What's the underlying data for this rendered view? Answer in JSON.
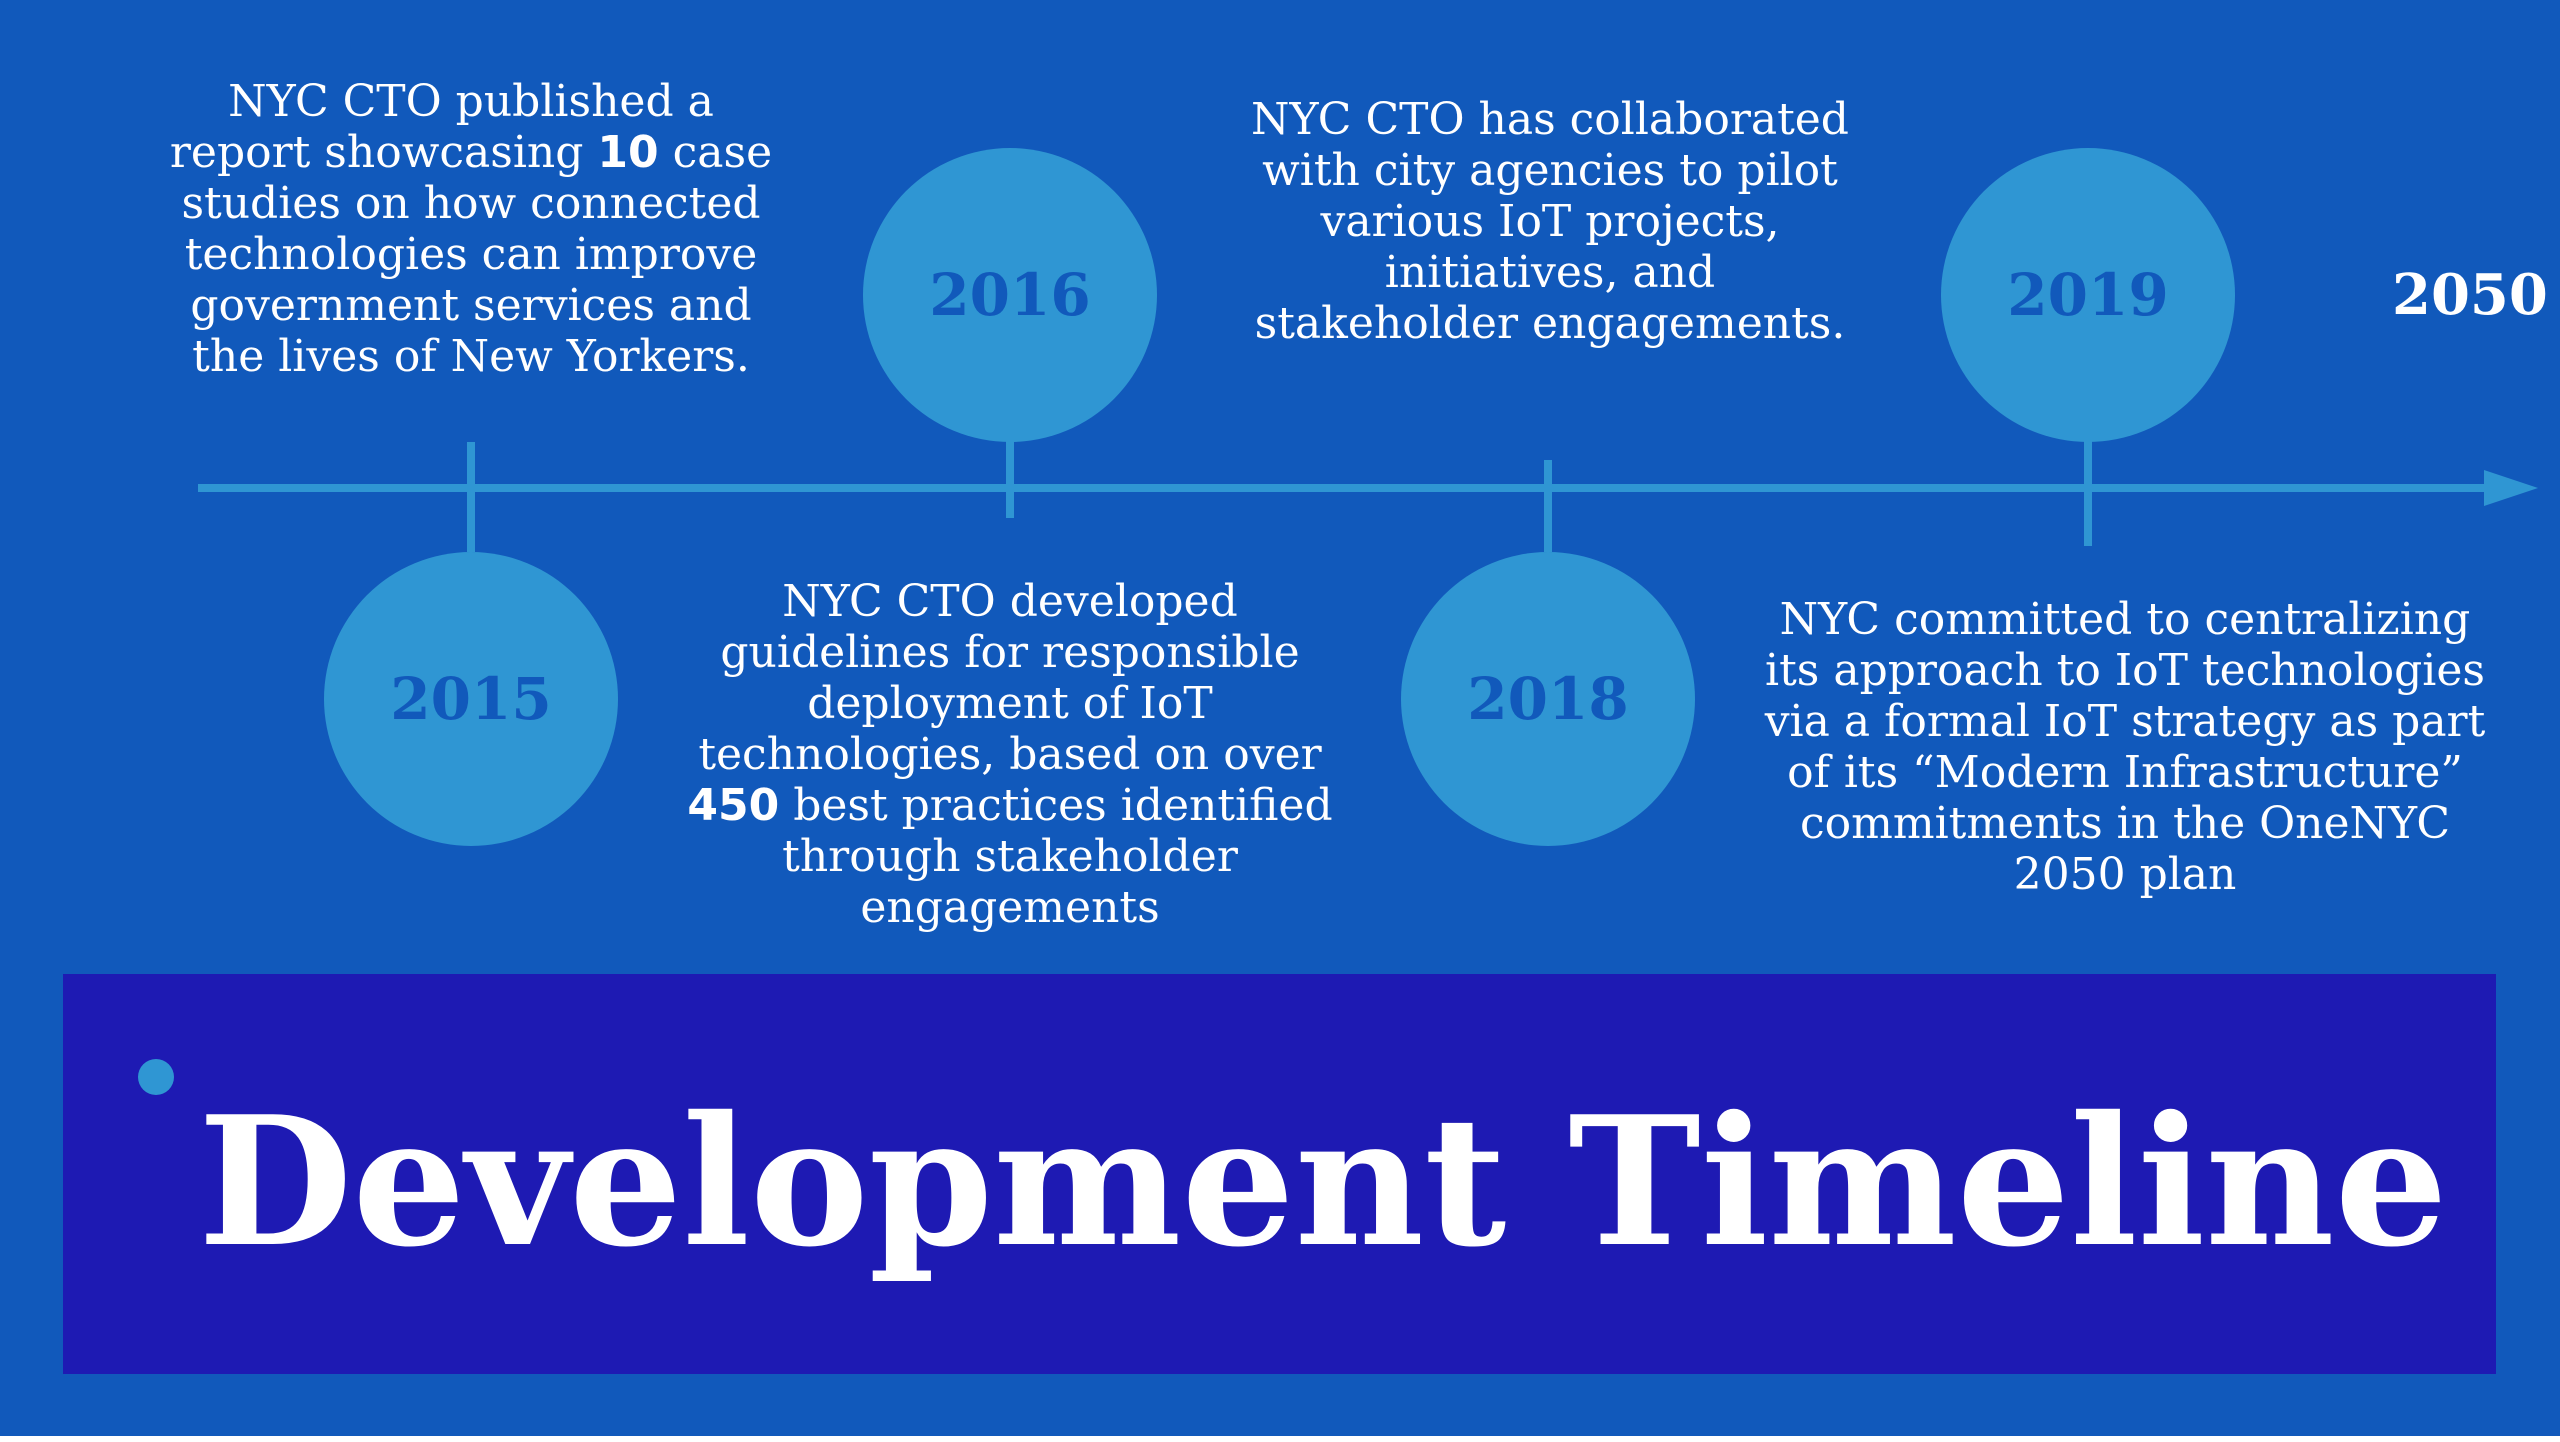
{
  "title": "Development Timeline",
  "end_year": "2050",
  "colors": {
    "background": "#1159bb",
    "axis": "#2f96d3",
    "year_circle": "#2f96d3",
    "year_text": "#1159bb",
    "title_panel": "#1e1ab3",
    "text": "#ffffff"
  },
  "milestones": [
    {
      "year": "2015",
      "parts": [
        {
          "text": "NYC CTO published a report showcasing "
        },
        {
          "text": "10",
          "bold": true
        },
        {
          "text": " case studies on how connected technologies can improve government services and the lives of New Yorkers."
        }
      ]
    },
    {
      "year": "2016",
      "parts": [
        {
          "text": "NYC CTO developed guidelines for responsible deployment of IoT technologies, based on over "
        },
        {
          "text": "450",
          "bold": true
        },
        {
          "text": " best practices identified through stakeholder engagements"
        }
      ]
    },
    {
      "year": "2018",
      "parts": [
        {
          "text": "NYC CTO has collaborated with city agencies to pilot various IoT projects, initiatives, and stakeholder engagements."
        }
      ]
    },
    {
      "year": "2019",
      "parts": [
        {
          "text": "NYC committed to centralizing its approach to IoT technologies via a formal IoT strategy as part of its “Modern Infrastructure” commitments in the OneNYC 2050 plan"
        }
      ]
    }
  ]
}
